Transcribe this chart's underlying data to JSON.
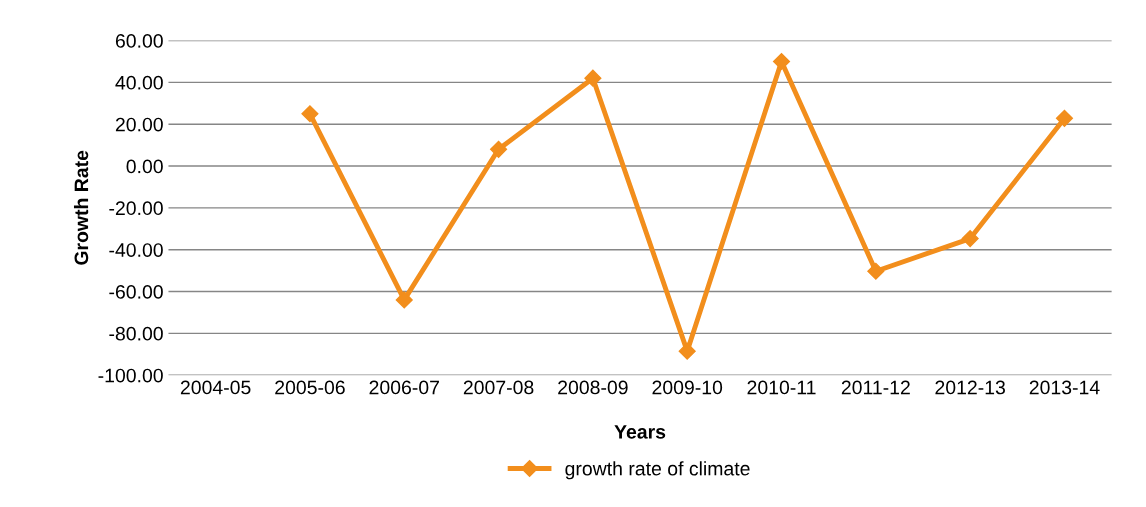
{
  "chart_data": {
    "type": "line",
    "xlabel": "Years",
    "ylabel": "Growth Rate",
    "categories": [
      "2004-05",
      "2005-06",
      "2006-07",
      "2007-08",
      "2008-09",
      "2009-10",
      "2010-11",
      "2011-12",
      "2012-13",
      "2013-14"
    ],
    "series": [
      {
        "name": "growth rate of climate",
        "color": "#f28e1c",
        "values": [
          null,
          25,
          -64,
          8,
          42,
          -88.5,
          50,
          -50.3,
          -34.7,
          22.8
        ]
      }
    ],
    "ylim": [
      -100,
      60
    ],
    "yticks": [
      {
        "value": -100,
        "label": "-100.00"
      },
      {
        "value": -80,
        "label": "-80.00"
      },
      {
        "value": -60,
        "label": "-60.00"
      },
      {
        "value": -40,
        "label": "-40.00"
      },
      {
        "value": -20,
        "label": "-20.00"
      },
      {
        "value": 0,
        "label": "0.00"
      },
      {
        "value": 20,
        "label": "20.00"
      },
      {
        "value": 40,
        "label": "40.00"
      },
      {
        "value": 60,
        "label": "60.00"
      }
    ],
    "grid": "y",
    "legend": "bottom",
    "marker": "diamond",
    "line_style": "solid"
  }
}
